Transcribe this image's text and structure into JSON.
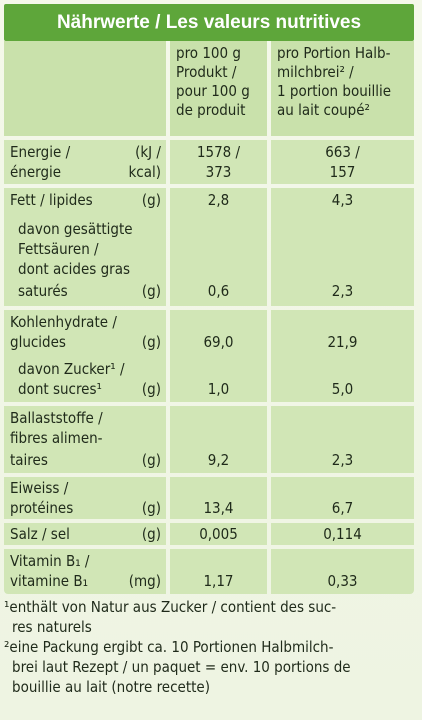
{
  "title": "Nährwerte / Les valeurs nutritives",
  "columns": {
    "col1": [
      "pro 100 g",
      "Produkt /",
      "pour 100 g",
      "de produit"
    ],
    "col2": [
      "pro Portion Halb-",
      "milchbrei² /",
      "1 portion bouillie",
      "au lait coupé²"
    ]
  },
  "rows": [
    {
      "label_lines": [
        "Energie /",
        "énergie"
      ],
      "units": [
        "(kJ /",
        "kcal)"
      ],
      "col1": [
        "1578 /",
        "373"
      ],
      "col2": [
        "663 /",
        "157"
      ]
    },
    {
      "label_lines": [
        "Fett / lipides"
      ],
      "units": [
        "(g)"
      ],
      "col1": [
        "2,8"
      ],
      "col2": [
        "4,3"
      ]
    },
    {
      "label_lines": [
        "davon gesättigte",
        "Fettsäuren /",
        "dont acides gras",
        "saturés"
      ],
      "units": [
        "(g)"
      ],
      "col1": [
        "0,6"
      ],
      "col2": [
        "2,3"
      ]
    },
    {
      "label_lines": [
        "Kohlenhydrate /",
        "glucides"
      ],
      "units": [
        "(g)"
      ],
      "col1": [
        "69,0"
      ],
      "col2": [
        "21,9"
      ]
    },
    {
      "label_lines": [
        "davon Zucker¹ /",
        "dont sucres¹"
      ],
      "units": [
        "(g)"
      ],
      "col1": [
        "1,0"
      ],
      "col2": [
        "5,0"
      ]
    },
    {
      "label_lines": [
        "Ballaststoffe /",
        "fibres alimen-",
        "taires"
      ],
      "units": [
        "(g)"
      ],
      "col1": [
        "9,2"
      ],
      "col2": [
        "2,3"
      ]
    },
    {
      "label_lines": [
        "Eiweiss /",
        "protéines"
      ],
      "units": [
        "(g)"
      ],
      "col1": [
        "13,4"
      ],
      "col2": [
        "6,7"
      ]
    },
    {
      "label_lines": [
        "Salz / sel"
      ],
      "units": [
        "(g)"
      ],
      "col1": [
        "0,005"
      ],
      "col2": [
        "0,114"
      ]
    },
    {
      "label_lines": [
        "Vitamin B₁ /",
        "vitamine B₁"
      ],
      "units": [
        "(mg)"
      ],
      "col1": [
        "1,17"
      ],
      "col2": [
        "0,33"
      ]
    }
  ],
  "footnotes": [
    "¹enthält von Natur aus Zucker / contient des suc-",
    "res naturels",
    "²eine Packung ergibt ca. 10 Portionen Halbmilch-",
    "brei laut Rezept / un paquet = env. 10 portions de",
    "bouillie au lait (notre recette)"
  ]
}
